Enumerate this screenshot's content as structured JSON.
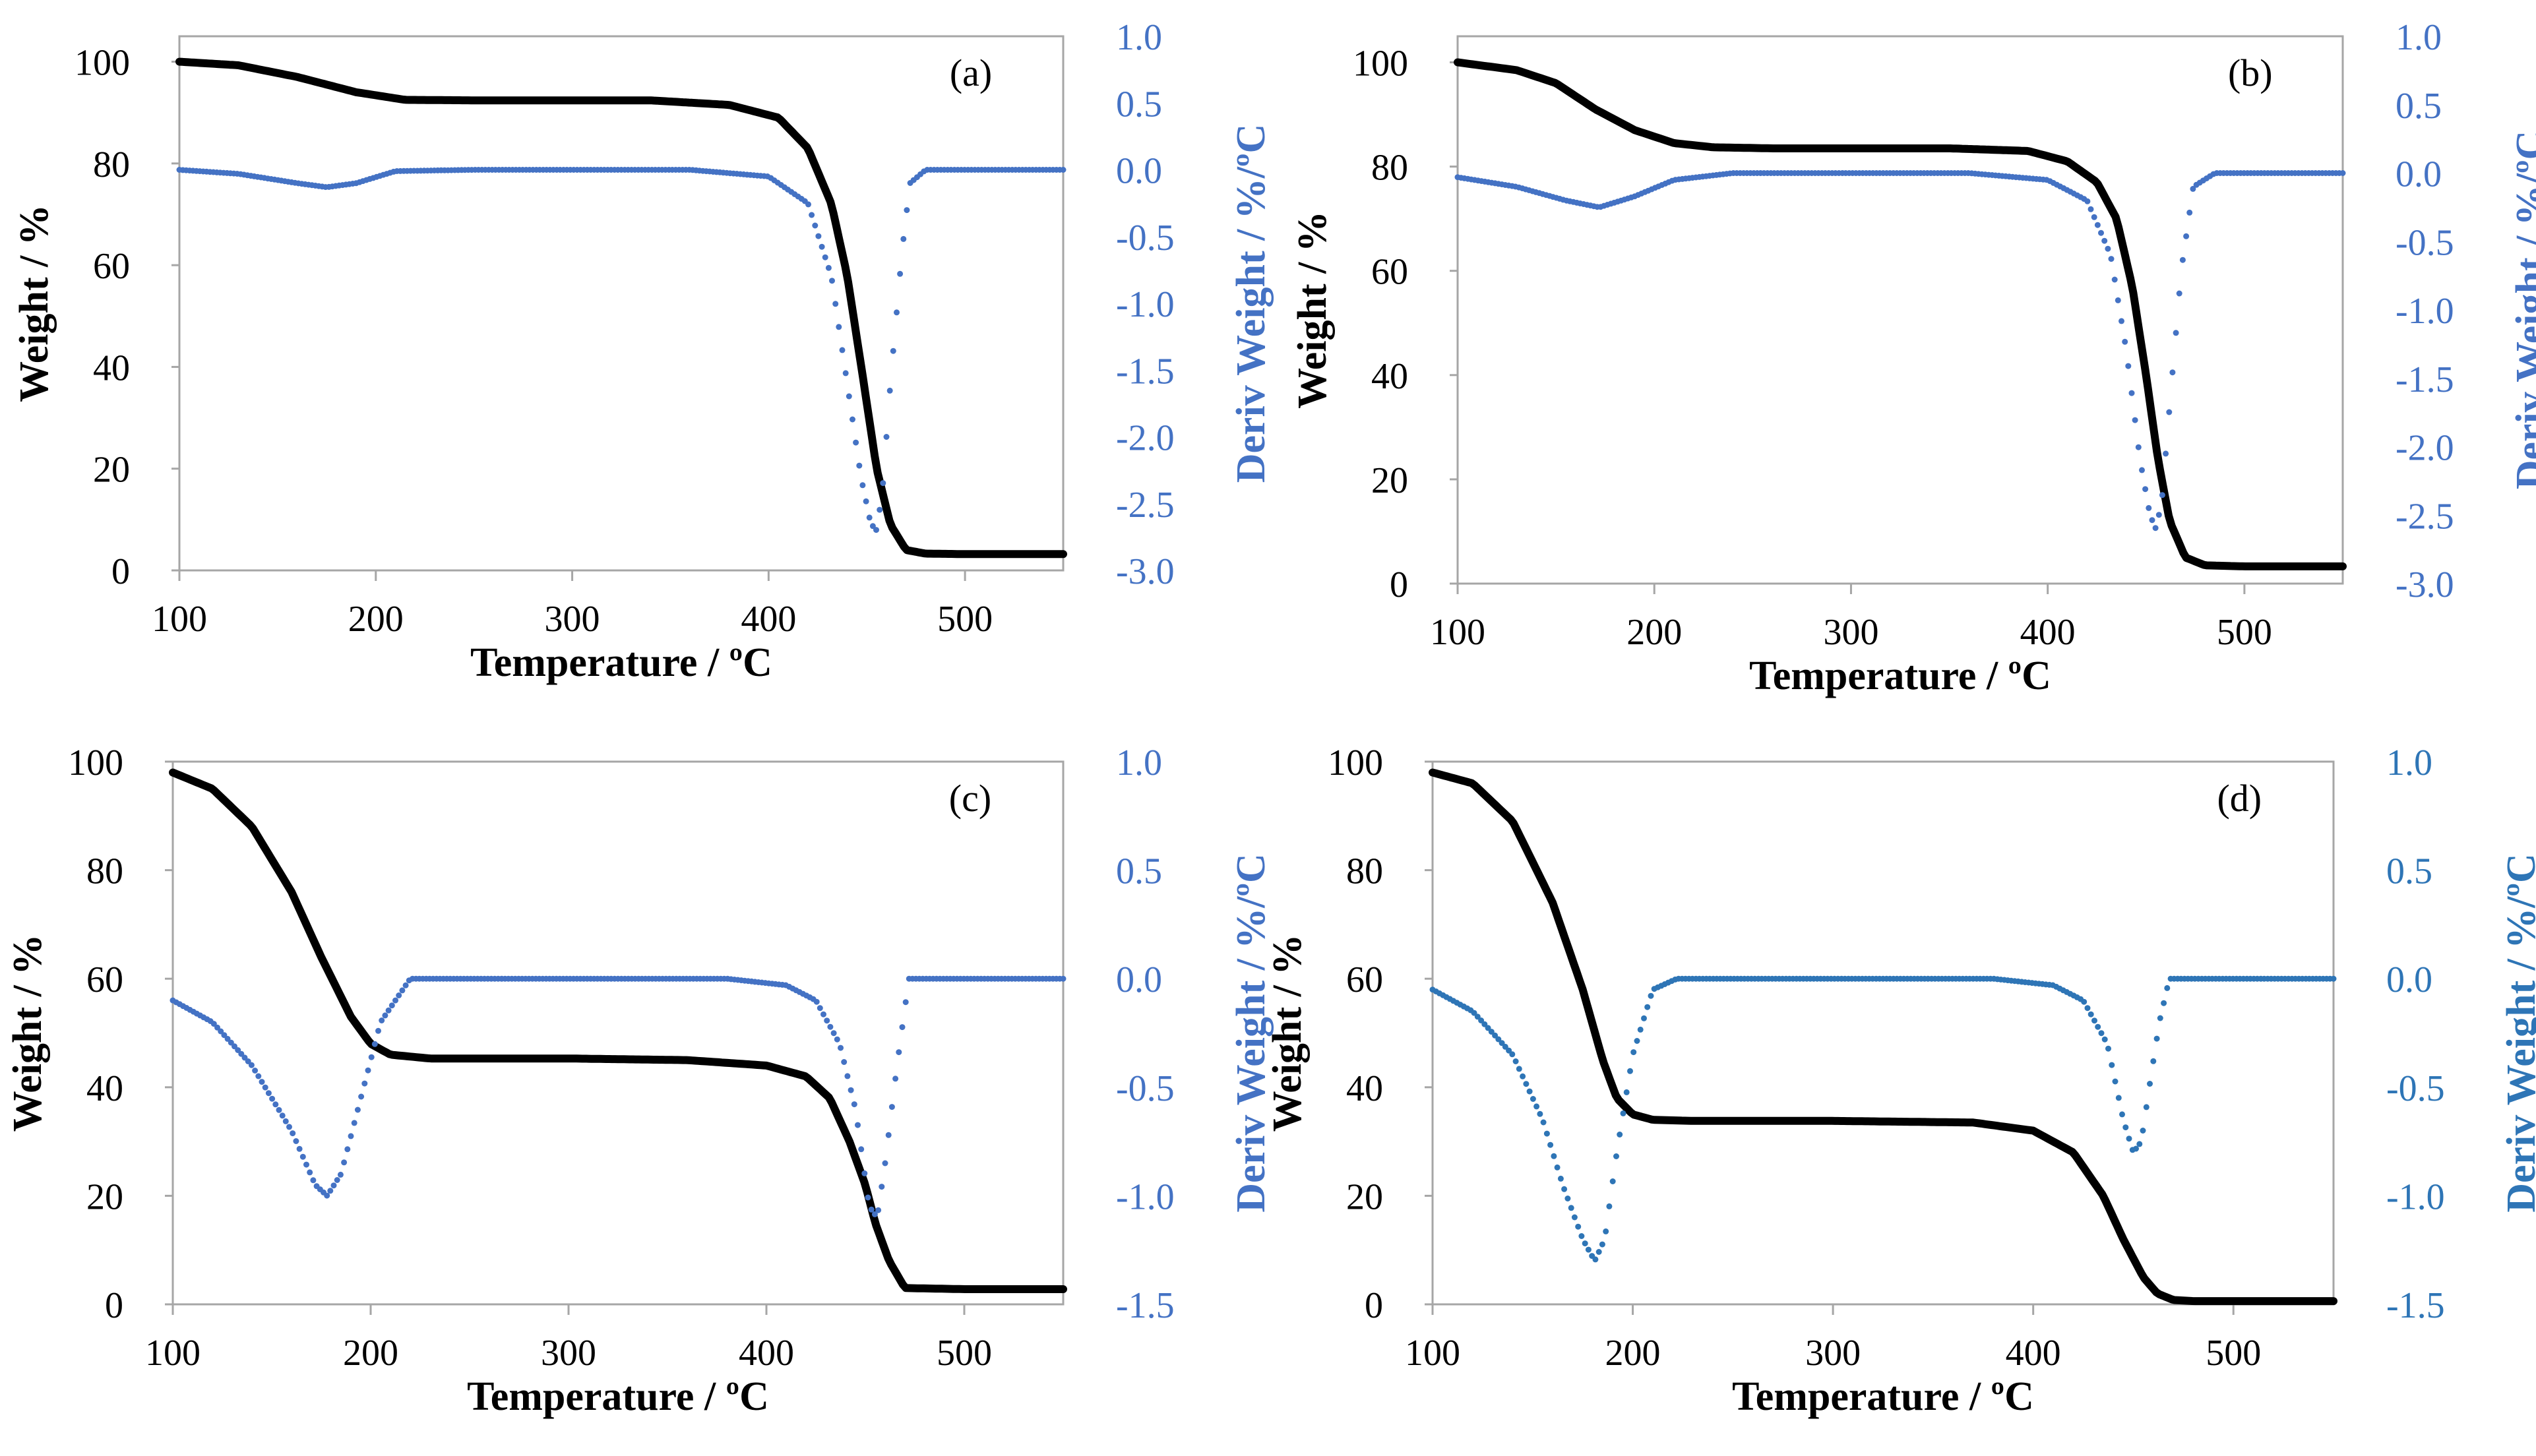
{
  "colors": {
    "weight": "#000000",
    "deriv": "#4472C4",
    "deriv_dark": "#2E75B6",
    "axis": "#a6a6a6"
  },
  "chart_data": [
    {
      "type": "line",
      "panel_label": "(a)",
      "xlabel": "Temperature / ºC",
      "ylabel": "Weight / %",
      "y2label": "Deriv Weight  / %/ºC",
      "xlim": [
        100,
        550
      ],
      "xticks": [
        100,
        200,
        300,
        400,
        500
      ],
      "ylim": [
        0,
        105
      ],
      "yticks": [
        0,
        20,
        40,
        60,
        80,
        100
      ],
      "y2lim": [
        -3.0,
        1.0
      ],
      "y2ticks": [
        1.0,
        0.5,
        0.0,
        -0.5,
        -1.0,
        -1.5,
        -2.0,
        -2.5,
        -3.0
      ],
      "y2tick_labels": [
        "1.0",
        "0.5",
        "0.0",
        "-0.5",
        "-1.0",
        "-1.5",
        "-2.0",
        "-2.5",
        "-3.0"
      ],
      "series": [
        {
          "name": "Weight",
          "axis": "left",
          "style": "solid",
          "x": [
            100,
            130,
            160,
            190,
            215,
            250,
            300,
            340,
            380,
            405,
            420,
            432,
            440,
            448,
            455,
            462,
            470,
            480,
            500,
            550
          ],
          "y": [
            100,
            99.3,
            97,
            94,
            92.5,
            92.4,
            92.4,
            92.4,
            91.5,
            89,
            83,
            72,
            58,
            38,
            20,
            9,
            4,
            3.3,
            3.2,
            3.2
          ]
        },
        {
          "name": "Deriv Weight",
          "axis": "right",
          "style": "dotted",
          "x": [
            100,
            130,
            160,
            175,
            190,
            210,
            250,
            300,
            360,
            400,
            420,
            432,
            440,
            447,
            452,
            455,
            458,
            462,
            468,
            472,
            480,
            500,
            550
          ],
          "y": [
            0.0,
            -0.03,
            -0.1,
            -0.13,
            -0.1,
            -0.01,
            0.0,
            0.0,
            0.0,
            -0.05,
            -0.25,
            -0.8,
            -1.6,
            -2.3,
            -2.65,
            -2.7,
            -2.4,
            -1.6,
            -0.6,
            -0.1,
            0.0,
            0.0,
            0.0
          ]
        }
      ]
    },
    {
      "type": "line",
      "panel_label": "(b)",
      "xlabel": "Temperature / ºC",
      "ylabel": "Weight / %",
      "y2label": "Deriv Weight  / %/ºC",
      "xlim": [
        100,
        550
      ],
      "xticks": [
        100,
        200,
        300,
        400,
        500
      ],
      "ylim": [
        0,
        105
      ],
      "yticks": [
        0,
        20,
        40,
        60,
        80,
        100
      ],
      "y2lim": [
        -3.0,
        1.0
      ],
      "y2ticks": [
        1.0,
        0.5,
        0.0,
        -0.5,
        -1.0,
        -1.5,
        -2.0,
        -2.5,
        -3.0
      ],
      "y2tick_labels": [
        "1.0",
        "0.5",
        "0.0",
        "-0.5",
        "-1.0",
        "-1.5",
        "-2.0",
        "-2.5",
        "-3.0"
      ],
      "series": [
        {
          "name": "Weight",
          "axis": "left",
          "style": "solid",
          "x": [
            100,
            130,
            150,
            170,
            190,
            210,
            230,
            260,
            300,
            350,
            390,
            410,
            425,
            435,
            443,
            450,
            456,
            462,
            470,
            480,
            500,
            550
          ],
          "y": [
            100,
            98.5,
            96,
            91,
            87,
            84.5,
            83.7,
            83.5,
            83.5,
            83.5,
            83,
            81,
            77,
            70,
            57,
            40,
            24,
            12,
            5,
            3.5,
            3.3,
            3.3
          ]
        },
        {
          "name": "Deriv Weight",
          "axis": "right",
          "style": "dotted",
          "x": [
            100,
            130,
            155,
            172,
            190,
            210,
            240,
            300,
            360,
            400,
            420,
            432,
            440,
            447,
            452,
            455,
            458,
            462,
            468,
            474,
            485,
            500,
            550
          ],
          "y": [
            -0.03,
            -0.1,
            -0.2,
            -0.25,
            -0.17,
            -0.05,
            0.0,
            0.0,
            0.0,
            -0.05,
            -0.2,
            -0.6,
            -1.3,
            -2.1,
            -2.5,
            -2.6,
            -2.4,
            -1.7,
            -0.7,
            -0.1,
            0.0,
            0.0,
            0.0
          ]
        }
      ]
    },
    {
      "type": "line",
      "panel_label": "(c)",
      "xlabel": "Temperature / ºC",
      "ylabel": "Weight / %",
      "y2label": "Deriv Weight  / %/ºC",
      "xlim": [
        100,
        550
      ],
      "xticks": [
        100,
        200,
        300,
        400,
        500
      ],
      "ylim": [
        0,
        100
      ],
      "yticks": [
        0,
        20,
        40,
        60,
        80,
        100
      ],
      "y2lim": [
        -1.5,
        1.0
      ],
      "y2ticks": [
        1.0,
        0.5,
        0.0,
        -0.5,
        -1.0,
        -1.5
      ],
      "y2tick_labels": [
        "1.0",
        "0.5",
        "0.0",
        "-0.5",
        "-1.0",
        "-1.5"
      ],
      "series": [
        {
          "name": "Weight",
          "axis": "left",
          "style": "solid",
          "x": [
            100,
            120,
            140,
            160,
            175,
            190,
            200,
            210,
            230,
            300,
            360,
            400,
            420,
            432,
            442,
            450,
            455,
            462,
            470,
            500,
            550
          ],
          "y": [
            98,
            95,
            88,
            76,
            64,
            53,
            48,
            46,
            45.3,
            45.3,
            45,
            44,
            42,
            38,
            30,
            22,
            15,
            8,
            3,
            2.8,
            2.8
          ]
        },
        {
          "name": "Deriv Weight",
          "axis": "right",
          "style": "dotted",
          "x": [
            100,
            120,
            140,
            160,
            172,
            178,
            185,
            195,
            205,
            220,
            260,
            320,
            380,
            410,
            425,
            437,
            445,
            452,
            456,
            460,
            466,
            472,
            500,
            550
          ],
          "y": [
            -0.1,
            -0.2,
            -0.4,
            -0.7,
            -0.95,
            -1.0,
            -0.9,
            -0.55,
            -0.2,
            0.0,
            0.0,
            0.0,
            0.0,
            -0.03,
            -0.1,
            -0.3,
            -0.6,
            -1.05,
            -1.1,
            -0.85,
            -0.4,
            0.0,
            0.0,
            0.0
          ]
        }
      ]
    },
    {
      "type": "line",
      "panel_label": "(d)",
      "xlabel": "Temperature / ºC",
      "ylabel": "Weight / %",
      "y2label": "Deriv Weight  / %/ºC",
      "xlim": [
        100,
        550
      ],
      "xticks": [
        100,
        200,
        300,
        400,
        500
      ],
      "ylim": [
        0,
        100
      ],
      "yticks": [
        0,
        20,
        40,
        60,
        80,
        100
      ],
      "y2lim": [
        -1.5,
        1.0
      ],
      "y2ticks": [
        1.0,
        0.5,
        0.0,
        -0.5,
        -1.0,
        -1.5
      ],
      "y2tick_labels": [
        "1.0",
        "0.5",
        "0.0",
        "-0.5",
        "-1.0",
        "-1.5"
      ],
      "series": [
        {
          "name": "Weight",
          "axis": "left",
          "style": "solid",
          "x": [
            100,
            120,
            140,
            160,
            175,
            185,
            192,
            200,
            210,
            230,
            300,
            370,
            400,
            420,
            435,
            445,
            455,
            462,
            470,
            480,
            500,
            550
          ],
          "y": [
            98,
            96,
            89,
            74,
            58,
            45,
            38,
            35,
            34,
            33.8,
            33.8,
            33.5,
            32,
            28,
            20,
            12,
            5,
            2,
            0.8,
            0.6,
            0.6,
            0.6
          ]
        },
        {
          "name": "Deriv Weight",
          "axis": "right",
          "style": "dotted",
          "x": [
            100,
            120,
            140,
            155,
            165,
            175,
            181,
            186,
            192,
            200,
            210,
            222,
            260,
            320,
            380,
            410,
            425,
            437,
            445,
            450,
            454,
            458,
            463,
            468,
            500,
            550
          ],
          "y": [
            -0.05,
            -0.15,
            -0.35,
            -0.65,
            -0.95,
            -1.2,
            -1.3,
            -1.2,
            -0.8,
            -0.35,
            -0.05,
            0.0,
            0.0,
            0.0,
            0.0,
            -0.03,
            -0.1,
            -0.3,
            -0.65,
            -0.8,
            -0.75,
            -0.5,
            -0.2,
            0.0,
            0.0,
            0.0
          ]
        }
      ]
    }
  ]
}
